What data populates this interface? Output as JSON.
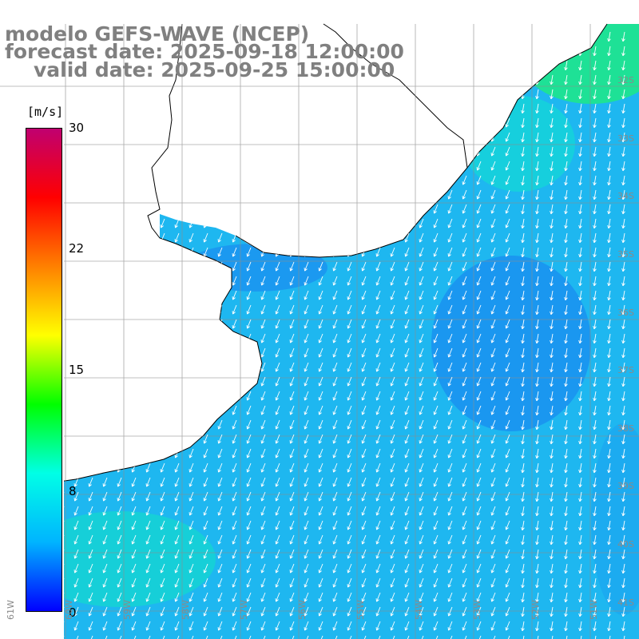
{
  "title": {
    "line1": "modelo GEFS-WAVE (NCEP)",
    "line2": "forecast date: 2025-09-18 12:00:00",
    "line3": "valid date: 2025-09-25 15:00:00"
  },
  "colorbar": {
    "unit": "[m/s]",
    "ticks": [
      "30",
      "22",
      "15",
      "8",
      "0"
    ],
    "tick_values": [
      30,
      22,
      15,
      8,
      0
    ],
    "range": [
      0,
      30
    ],
    "colors": [
      "#0000ff",
      "#00b4ff",
      "#00ffe6",
      "#00ff00",
      "#ffff00",
      "#ff8000",
      "#ff0000",
      "#c00070"
    ]
  },
  "lat_labels": [
    "32S",
    "33S",
    "34S",
    "35S",
    "36S",
    "37S",
    "38S",
    "39S",
    "40S",
    "41S"
  ],
  "lon_labels": [
    "61W",
    "60W",
    "59W",
    "58W",
    "57W",
    "56W",
    "55W",
    "54W",
    "53W",
    "52W",
    "51W"
  ],
  "colors": {
    "land": "#ffffff",
    "coast": "#000000",
    "grid": "#8c8c8c",
    "arrow": "#ffffff",
    "title": "#808080"
  }
}
